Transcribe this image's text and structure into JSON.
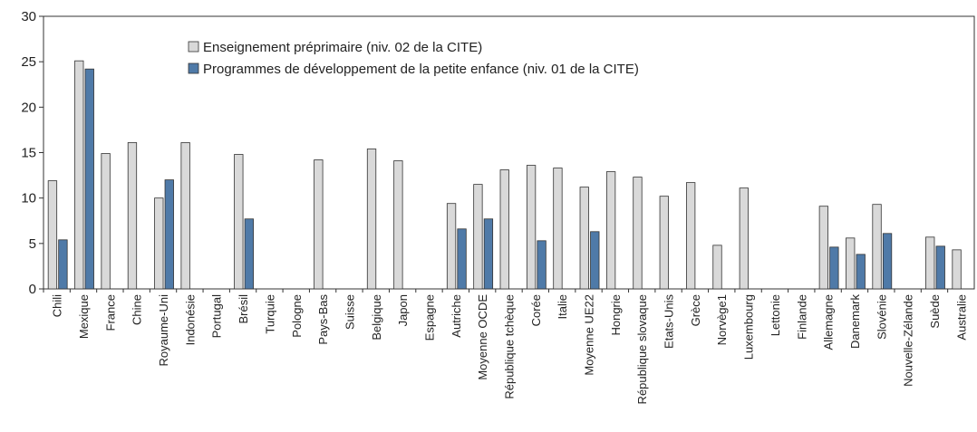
{
  "chart_data": {
    "type": "bar",
    "categories": [
      "Chili",
      "Mexique",
      "France",
      "Chine",
      "Royaume-Uni",
      "Indonésie",
      "Portugal",
      "Brésil",
      "Turquie",
      "Pologne",
      "Pays-Bas",
      "Suisse",
      "Belgique",
      "Japon",
      "Espagne",
      "Autriche",
      "Moyenne OCDE",
      "République tchèque",
      "Corée",
      "Italie",
      "Moyenne UE22",
      "Hongrie",
      "République slovaque",
      "Etats-Unis",
      "Grèce",
      "Norvège1",
      "Luxembourg",
      "Lettonie",
      "Finlande",
      "Allemagne",
      "Danemark",
      "Slovénie",
      "Nouvelle-Zélande",
      "Suède",
      "Australie"
    ],
    "series": [
      {
        "name": "Enseignement préprimaire (niv. 02 de la CITE)",
        "color": "#d9d9d9",
        "values": [
          11.9,
          25.1,
          14.9,
          16.1,
          10.0,
          16.1,
          null,
          14.8,
          null,
          null,
          14.2,
          null,
          15.4,
          14.1,
          null,
          9.4,
          11.5,
          13.1,
          13.6,
          13.3,
          11.2,
          12.9,
          12.3,
          10.2,
          11.7,
          4.8,
          11.1,
          null,
          null,
          9.1,
          5.6,
          9.3,
          null,
          5.7,
          4.3
        ]
      },
      {
        "name": "Programmes de développement de la petite enfance (niv. 01 de la CITE)",
        "color": "#4f7aa8",
        "values": [
          5.4,
          24.2,
          null,
          null,
          12.0,
          null,
          null,
          7.7,
          null,
          null,
          null,
          null,
          null,
          null,
          null,
          6.6,
          7.7,
          null,
          5.3,
          null,
          6.3,
          null,
          null,
          null,
          null,
          null,
          null,
          null,
          null,
          4.6,
          3.8,
          6.1,
          null,
          4.7,
          null
        ]
      }
    ],
    "ylim": [
      0,
      30
    ],
    "yticks": [
      0,
      5,
      10,
      15,
      20,
      25,
      30
    ],
    "legend": "top"
  }
}
